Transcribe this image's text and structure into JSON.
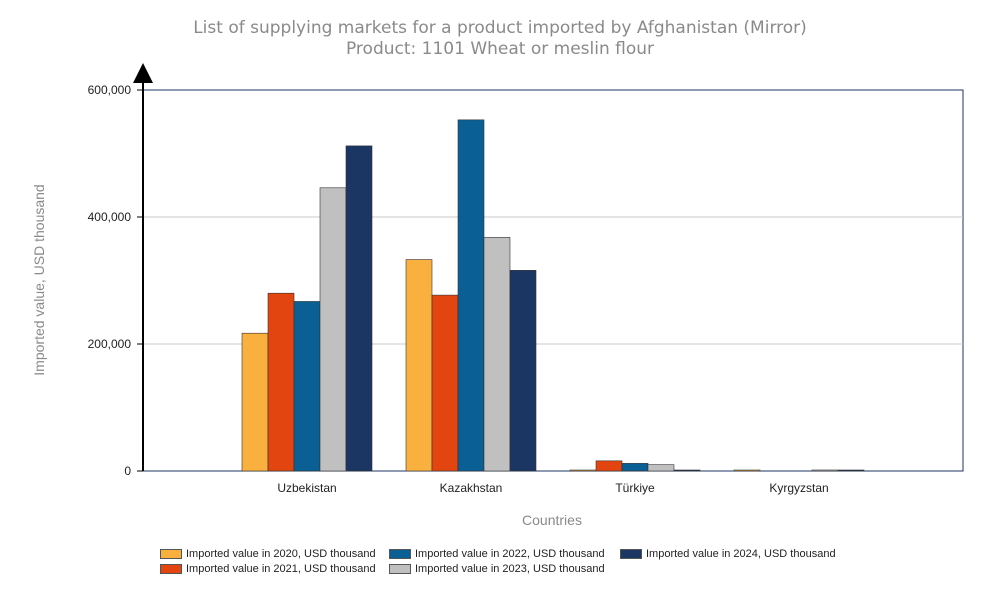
{
  "chart_data": {
    "type": "bar",
    "title": "List of supplying markets for a product imported by Afghanistan (Mirror)",
    "subtitle": "Product: 1101 Wheat or meslin flour",
    "xlabel": "Countries",
    "ylabel": "Imported value, USD thousand",
    "ylim": [
      0,
      600000
    ],
    "yticks": [
      "0",
      "200,000",
      "400,000",
      "600,000"
    ],
    "ytick_values": [
      0,
      200000,
      400000,
      600000
    ],
    "categories": [
      "Uzbekistan",
      "Kazakhstan",
      "Türkiye",
      "Kyrgyzstan"
    ],
    "grid": true,
    "legend_position": "bottom",
    "series": [
      {
        "name": "Imported value in 2020, USD thousand",
        "color": "#f9b03f",
        "values": [
          217000,
          333000,
          500,
          800
        ]
      },
      {
        "name": "Imported value in 2021, USD thousand",
        "color": "#e2450f",
        "values": [
          280000,
          277000,
          16000,
          0
        ]
      },
      {
        "name": "Imported value in 2022, USD thousand",
        "color": "#0a6094",
        "values": [
          267000,
          553000,
          12000,
          0
        ]
      },
      {
        "name": "Imported value in 2023, USD thousand",
        "color": "#c0c0c0",
        "values": [
          446000,
          368000,
          10000,
          1000
        ]
      },
      {
        "name": "Imported value in 2024, USD thousand",
        "color": "#1c3664",
        "values": [
          512000,
          316000,
          1000,
          1000
        ]
      }
    ]
  }
}
